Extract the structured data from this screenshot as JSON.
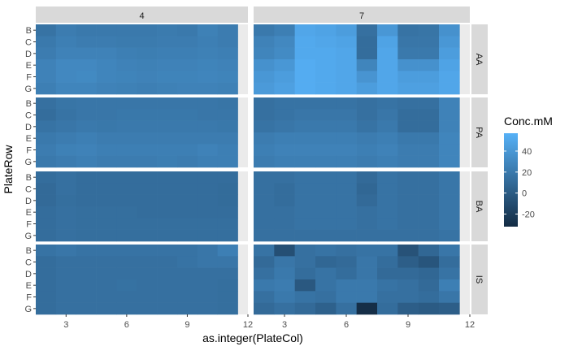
{
  "chart_data": {
    "type": "heatmap",
    "xlabel": "as.integer(PlateCol)",
    "ylabel": "PlateRow",
    "x_ticks": [
      3,
      6,
      9,
      12
    ],
    "x_range": [
      1.5,
      12
    ],
    "rows": [
      "B",
      "C",
      "D",
      "E",
      "F",
      "G"
    ],
    "column_facets": [
      "4",
      "7"
    ],
    "row_facets": [
      "AA",
      "PA",
      "BA",
      "IS"
    ],
    "columns": [
      2,
      3,
      4,
      5,
      6,
      7,
      8,
      9,
      10,
      11
    ],
    "legend": {
      "title": "Conc.mM",
      "ticks": [
        40,
        20,
        0,
        -20
      ],
      "range": [
        -32,
        57
      ],
      "low_color": "#132b43",
      "high_color": "#56b1f7",
      "placement": "right"
    },
    "panels": [
      {
        "facet_col": "4",
        "facet_row": "AA",
        "values": [
          [
            16,
            22,
            20,
            20,
            20,
            20,
            21,
            20,
            25,
            22
          ],
          [
            20,
            24,
            22,
            22,
            21,
            21,
            22,
            22,
            24,
            22
          ],
          [
            22,
            26,
            26,
            26,
            24,
            23,
            24,
            24,
            25,
            24
          ],
          [
            26,
            30,
            30,
            28,
            26,
            25,
            26,
            26,
            27,
            26
          ],
          [
            26,
            30,
            31,
            28,
            27,
            26,
            27,
            27,
            28,
            27
          ],
          [
            24,
            28,
            28,
            26,
            25,
            24,
            25,
            26,
            26,
            25
          ]
        ]
      },
      {
        "facet_col": "7",
        "facet_row": "AA",
        "values": [
          [
            20,
            24,
            50,
            48,
            44,
            14,
            40,
            16,
            17,
            36
          ],
          [
            26,
            30,
            52,
            50,
            48,
            12,
            48,
            18,
            18,
            40
          ],
          [
            28,
            32,
            52,
            52,
            50,
            12,
            50,
            20,
            20,
            44
          ],
          [
            36,
            40,
            54,
            52,
            50,
            28,
            50,
            36,
            36,
            48
          ],
          [
            40,
            44,
            54,
            52,
            50,
            38,
            50,
            44,
            44,
            50
          ],
          [
            42,
            46,
            54,
            52,
            50,
            44,
            50,
            46,
            46,
            50
          ]
        ]
      },
      {
        "facet_col": "4",
        "facet_row": "PA",
        "values": [
          [
            14,
            17,
            18,
            18,
            18,
            18,
            18,
            18,
            18,
            17
          ],
          [
            12,
            16,
            18,
            18,
            19,
            19,
            19,
            19,
            18,
            18
          ],
          [
            16,
            18,
            20,
            19,
            20,
            20,
            20,
            20,
            20,
            19
          ],
          [
            20,
            22,
            24,
            22,
            22,
            22,
            22,
            22,
            22,
            22
          ],
          [
            22,
            25,
            26,
            24,
            24,
            24,
            24,
            24,
            26,
            24
          ],
          [
            20,
            22,
            24,
            22,
            22,
            22,
            23,
            22,
            24,
            24
          ]
        ]
      },
      {
        "facet_col": "7",
        "facet_row": "PA",
        "values": [
          [
            14,
            16,
            16,
            16,
            16,
            14,
            16,
            14,
            14,
            26
          ],
          [
            14,
            16,
            18,
            18,
            18,
            14,
            18,
            12,
            12,
            26
          ],
          [
            16,
            18,
            20,
            20,
            20,
            16,
            20,
            12,
            12,
            26
          ],
          [
            22,
            24,
            24,
            24,
            24,
            22,
            24,
            20,
            20,
            28
          ],
          [
            24,
            26,
            26,
            26,
            26,
            24,
            26,
            22,
            22,
            28
          ],
          [
            22,
            24,
            24,
            24,
            24,
            22,
            24,
            22,
            22,
            28
          ]
        ]
      },
      {
        "facet_col": "4",
        "facet_row": "BA",
        "values": [
          [
            12,
            14,
            12,
            12,
            12,
            12,
            12,
            12,
            12,
            12
          ],
          [
            10,
            14,
            12,
            12,
            12,
            12,
            12,
            12,
            12,
            11
          ],
          [
            10,
            13,
            12,
            12,
            12,
            12,
            12,
            12,
            12,
            11
          ],
          [
            12,
            14,
            13,
            13,
            13,
            12,
            12,
            12,
            12,
            12
          ],
          [
            12,
            14,
            13,
            13,
            13,
            13,
            13,
            13,
            13,
            13
          ],
          [
            12,
            14,
            13,
            13,
            13,
            13,
            13,
            13,
            13,
            13
          ]
        ]
      },
      {
        "facet_col": "7",
        "facet_row": "BA",
        "values": [
          [
            14,
            14,
            16,
            16,
            16,
            10,
            16,
            14,
            14,
            18
          ],
          [
            14,
            12,
            16,
            16,
            16,
            8,
            16,
            14,
            14,
            18
          ],
          [
            14,
            12,
            16,
            16,
            16,
            10,
            16,
            14,
            14,
            18
          ],
          [
            14,
            14,
            16,
            16,
            16,
            14,
            16,
            14,
            14,
            18
          ],
          [
            14,
            14,
            16,
            16,
            16,
            14,
            16,
            14,
            14,
            18
          ],
          [
            14,
            14,
            14,
            14,
            14,
            14,
            14,
            14,
            14,
            16
          ]
        ]
      },
      {
        "facet_col": "4",
        "facet_row": "IS",
        "values": [
          [
            16,
            18,
            16,
            16,
            16,
            16,
            16,
            16,
            18,
            24
          ],
          [
            12,
            14,
            14,
            14,
            14,
            14,
            14,
            16,
            18,
            18
          ],
          [
            12,
            14,
            14,
            14,
            14,
            14,
            14,
            14,
            14,
            14
          ],
          [
            12,
            14,
            14,
            14,
            15,
            14,
            14,
            14,
            14,
            13
          ],
          [
            12,
            14,
            14,
            14,
            14,
            14,
            14,
            14,
            14,
            13
          ],
          [
            12,
            14,
            14,
            14,
            14,
            14,
            14,
            14,
            14,
            13
          ]
        ]
      },
      {
        "facet_col": "7",
        "facet_row": "IS",
        "values": [
          [
            16,
            -8,
            14,
            16,
            14,
            16,
            16,
            -6,
            8,
            18
          ],
          [
            10,
            18,
            14,
            8,
            10,
            18,
            12,
            2,
            -4,
            12
          ],
          [
            14,
            20,
            12,
            16,
            12,
            18,
            10,
            10,
            8,
            16
          ],
          [
            20,
            22,
            -2,
            16,
            20,
            20,
            16,
            14,
            10,
            24
          ],
          [
            14,
            20,
            16,
            14,
            20,
            20,
            14,
            14,
            12,
            18
          ],
          [
            10,
            14,
            10,
            4,
            14,
            -30,
            12,
            2,
            0,
            2
          ]
        ]
      }
    ]
  }
}
